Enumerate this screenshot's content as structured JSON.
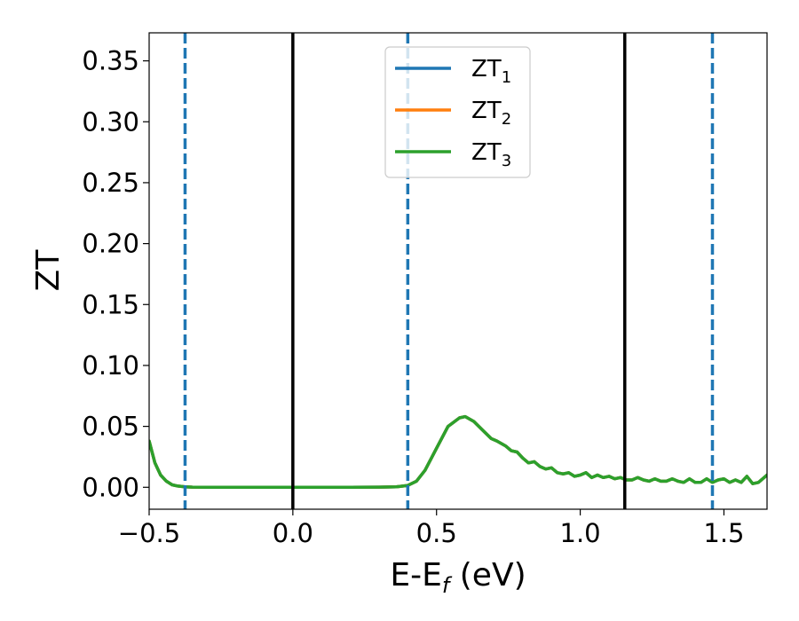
{
  "chart_data": {
    "type": "line",
    "xlabel": {
      "base": "E-E",
      "sub": "f",
      "suffix": " (eV)"
    },
    "ylabel": "ZT",
    "xlim": [
      -0.5,
      1.65
    ],
    "ylim": [
      -0.018,
      0.373
    ],
    "xticks": [
      {
        "value": -0.5,
        "label": "−0.5"
      },
      {
        "value": 0.0,
        "label": "0.0"
      },
      {
        "value": 0.5,
        "label": "0.5"
      },
      {
        "value": 1.0,
        "label": "1.0"
      },
      {
        "value": 1.5,
        "label": "1.5"
      }
    ],
    "yticks": [
      {
        "value": 0.0,
        "label": "0.00"
      },
      {
        "value": 0.05,
        "label": "0.05"
      },
      {
        "value": 0.1,
        "label": "0.10"
      },
      {
        "value": 0.15,
        "label": "0.15"
      },
      {
        "value": 0.2,
        "label": "0.20"
      },
      {
        "value": 0.25,
        "label": "0.25"
      },
      {
        "value": 0.3,
        "label": "0.30"
      },
      {
        "value": 0.35,
        "label": "0.35"
      }
    ],
    "grid": false,
    "legend_position": "top-center",
    "vlines_solid": [
      0.0,
      1.155
    ],
    "vlines_dashed": [
      -0.375,
      0.4,
      1.46
    ],
    "vline_solid_color": "#000000",
    "vline_dashed_color": "#1f77b4",
    "series": [
      {
        "name": "ZT",
        "name_sub": "1",
        "color": "#1f77b4",
        "x": [
          -0.5,
          -0.48,
          -0.46,
          -0.44,
          -0.42,
          -0.4,
          -0.375,
          -0.35,
          -0.3,
          -0.2,
          0.0,
          0.2,
          0.3,
          0.36,
          0.4,
          0.43,
          0.46,
          0.5,
          0.54,
          0.58,
          0.6,
          0.63,
          0.66,
          0.69,
          0.71,
          0.74,
          0.76,
          0.78,
          0.8,
          0.82,
          0.84,
          0.86,
          0.88,
          0.9,
          0.92,
          0.94,
          0.96,
          0.98,
          1.0,
          1.02,
          1.04,
          1.06,
          1.08,
          1.1,
          1.12,
          1.14,
          1.16,
          1.18,
          1.2,
          1.22,
          1.24,
          1.26,
          1.28,
          1.3,
          1.32,
          1.34,
          1.36,
          1.38,
          1.4,
          1.42,
          1.44,
          1.46,
          1.48,
          1.5,
          1.52,
          1.54,
          1.56,
          1.58,
          1.6,
          1.62,
          1.65
        ],
        "y": [
          0.038,
          0.02,
          0.01,
          0.005,
          0.002,
          0.001,
          0.0004,
          0.0001,
          0.0,
          0.0,
          0.0,
          0.0,
          0.0001,
          0.0004,
          0.0015,
          0.005,
          0.014,
          0.032,
          0.05,
          0.057,
          0.058,
          0.054,
          0.047,
          0.04,
          0.038,
          0.034,
          0.03,
          0.029,
          0.024,
          0.02,
          0.021,
          0.017,
          0.015,
          0.016,
          0.012,
          0.011,
          0.012,
          0.009,
          0.01,
          0.012,
          0.008,
          0.01,
          0.008,
          0.009,
          0.007,
          0.008,
          0.006,
          0.006,
          0.008,
          0.006,
          0.005,
          0.007,
          0.005,
          0.005,
          0.007,
          0.005,
          0.004,
          0.007,
          0.004,
          0.004,
          0.007,
          0.004,
          0.006,
          0.007,
          0.004,
          0.006,
          0.004,
          0.009,
          0.003,
          0.004,
          0.01
        ]
      },
      {
        "name": "ZT",
        "name_sub": "2",
        "color": "#ff7f0e",
        "x": [
          -0.5,
          -0.48,
          -0.46,
          -0.44,
          -0.42,
          -0.4,
          -0.375,
          -0.35,
          -0.3,
          -0.2,
          0.0,
          0.2,
          0.3,
          0.36,
          0.4,
          0.43,
          0.46,
          0.5,
          0.54,
          0.58,
          0.6,
          0.63,
          0.66,
          0.69,
          0.71,
          0.74,
          0.76,
          0.78,
          0.8,
          0.82,
          0.84,
          0.86,
          0.88,
          0.9,
          0.92,
          0.94,
          0.96,
          0.98,
          1.0,
          1.02,
          1.04,
          1.06,
          1.08,
          1.1,
          1.12,
          1.14,
          1.16,
          1.18,
          1.2,
          1.22,
          1.24,
          1.26,
          1.28,
          1.3,
          1.32,
          1.34,
          1.36,
          1.38,
          1.4,
          1.42,
          1.44,
          1.46,
          1.48,
          1.5,
          1.52,
          1.54,
          1.56,
          1.58,
          1.6,
          1.62,
          1.65
        ],
        "y": [
          0.038,
          0.02,
          0.01,
          0.005,
          0.002,
          0.001,
          0.0004,
          0.0001,
          0.0,
          0.0,
          0.0,
          0.0,
          0.0001,
          0.0004,
          0.0015,
          0.005,
          0.014,
          0.032,
          0.05,
          0.057,
          0.058,
          0.054,
          0.047,
          0.04,
          0.038,
          0.034,
          0.03,
          0.029,
          0.024,
          0.02,
          0.021,
          0.017,
          0.015,
          0.016,
          0.012,
          0.011,
          0.012,
          0.009,
          0.01,
          0.012,
          0.008,
          0.01,
          0.008,
          0.009,
          0.007,
          0.008,
          0.006,
          0.006,
          0.008,
          0.006,
          0.005,
          0.007,
          0.005,
          0.005,
          0.007,
          0.005,
          0.004,
          0.007,
          0.004,
          0.004,
          0.007,
          0.004,
          0.006,
          0.007,
          0.004,
          0.006,
          0.004,
          0.009,
          0.003,
          0.004,
          0.01
        ]
      },
      {
        "name": "ZT",
        "name_sub": "3",
        "color": "#2ca02c",
        "x": [
          -0.5,
          -0.48,
          -0.46,
          -0.44,
          -0.42,
          -0.4,
          -0.375,
          -0.35,
          -0.3,
          -0.2,
          0.0,
          0.2,
          0.3,
          0.36,
          0.4,
          0.43,
          0.46,
          0.5,
          0.54,
          0.58,
          0.6,
          0.63,
          0.66,
          0.69,
          0.71,
          0.74,
          0.76,
          0.78,
          0.8,
          0.82,
          0.84,
          0.86,
          0.88,
          0.9,
          0.92,
          0.94,
          0.96,
          0.98,
          1.0,
          1.02,
          1.04,
          1.06,
          1.08,
          1.1,
          1.12,
          1.14,
          1.16,
          1.18,
          1.2,
          1.22,
          1.24,
          1.26,
          1.28,
          1.3,
          1.32,
          1.34,
          1.36,
          1.38,
          1.4,
          1.42,
          1.44,
          1.46,
          1.48,
          1.5,
          1.52,
          1.54,
          1.56,
          1.58,
          1.6,
          1.62,
          1.65
        ],
        "y": [
          0.038,
          0.02,
          0.01,
          0.005,
          0.002,
          0.001,
          0.0004,
          0.0001,
          0.0,
          0.0,
          0.0,
          0.0,
          0.0001,
          0.0004,
          0.0015,
          0.005,
          0.014,
          0.032,
          0.05,
          0.057,
          0.058,
          0.054,
          0.047,
          0.04,
          0.038,
          0.034,
          0.03,
          0.029,
          0.024,
          0.02,
          0.021,
          0.017,
          0.015,
          0.016,
          0.012,
          0.011,
          0.012,
          0.009,
          0.01,
          0.012,
          0.008,
          0.01,
          0.008,
          0.009,
          0.007,
          0.008,
          0.006,
          0.006,
          0.008,
          0.006,
          0.005,
          0.007,
          0.005,
          0.005,
          0.007,
          0.005,
          0.004,
          0.007,
          0.004,
          0.004,
          0.007,
          0.004,
          0.006,
          0.007,
          0.004,
          0.006,
          0.004,
          0.009,
          0.003,
          0.004,
          0.01
        ]
      }
    ]
  }
}
